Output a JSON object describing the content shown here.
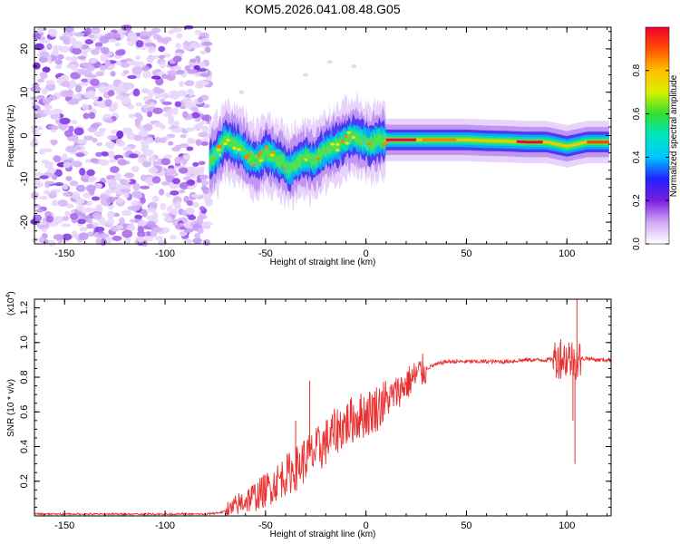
{
  "title": "KOM5.2026.041.08.48.G05",
  "chart_data": [
    {
      "type": "heatmap",
      "xlabel": "Height of straight line (km)",
      "ylabel": "Frequency (Hz)",
      "xlim": [
        -165,
        122
      ],
      "ylim": [
        -25,
        25
      ],
      "xticks": [
        -150,
        -100,
        -50,
        0,
        50,
        100
      ],
      "yticks": [
        -20,
        -10,
        0,
        10,
        20
      ],
      "noise_region_x": [
        -165,
        -78
      ],
      "signal_track": {
        "x": [
          -78,
          -74,
          -70,
          -66,
          -62,
          -58,
          -54,
          -50,
          -46,
          -42,
          -38,
          -34,
          -30,
          -26,
          -22,
          -18,
          -14,
          -10,
          -6,
          -2,
          2,
          6,
          10,
          20,
          30,
          40,
          50,
          60,
          70,
          80,
          90,
          95,
          100,
          105,
          110,
          115,
          120
        ],
        "y": [
          -6,
          -4,
          -1,
          -2,
          -3,
          -5,
          -6,
          -4,
          -5,
          -6,
          -8,
          -6,
          -5,
          -6,
          -4,
          -3,
          -2,
          -1,
          0,
          -1,
          -2,
          -1,
          -1,
          -1,
          -1,
          -1,
          -1,
          -1.2,
          -1.3,
          -1.5,
          -1.5,
          -2,
          -2.5,
          -2,
          -1.5,
          -1.5,
          -1.5
        ]
      },
      "colorbar": {
        "label": "Normalized spectral amplitude",
        "range": [
          0,
          1
        ],
        "ticks": [
          "0.0",
          "0.2",
          "0.4",
          "0.6",
          "0.8"
        ],
        "colors": [
          "#ffffff",
          "#cfa8f5",
          "#7a1ee0",
          "#2020ff",
          "#00c8ff",
          "#00e5c0",
          "#30e030",
          "#d8f000",
          "#ffc000",
          "#ff5000",
          "#f00030"
        ]
      }
    },
    {
      "type": "line",
      "xlabel": "Height of straight line (km)",
      "ylabel": "SNR (10 * v/v)",
      "scale_label": "(x10",
      "scale_exp": "4",
      "scale_close": ")",
      "xlim": [
        -165,
        122
      ],
      "ylim": [
        0,
        1.25
      ],
      "xticks": [
        -150,
        -100,
        -50,
        0,
        50,
        100
      ],
      "yticks": [
        "0.2",
        "0.4",
        "0.6",
        "0.8",
        "1.0",
        "1.2"
      ],
      "color": "#e83030",
      "series": [
        {
          "name": "SNR",
          "x": [
            -165,
            -100,
            -80,
            -72,
            -66,
            -62,
            -58,
            -54,
            -50,
            -46,
            -42,
            -38,
            -34,
            -30,
            -26,
            -22,
            -18,
            -14,
            -10,
            -6,
            -2,
            2,
            6,
            10,
            14,
            18,
            22,
            26,
            30,
            34,
            40,
            50,
            60,
            70,
            80,
            90,
            95,
            100,
            105,
            110,
            115,
            122
          ],
          "y": [
            0.01,
            0.01,
            0.01,
            0.02,
            0.04,
            0.08,
            0.1,
            0.12,
            0.15,
            0.18,
            0.22,
            0.25,
            0.28,
            0.33,
            0.36,
            0.4,
            0.45,
            0.5,
            0.53,
            0.56,
            0.58,
            0.6,
            0.63,
            0.66,
            0.7,
            0.74,
            0.78,
            0.82,
            0.85,
            0.87,
            0.89,
            0.89,
            0.89,
            0.89,
            0.9,
            0.9,
            0.91,
            0.91,
            0.9,
            0.91,
            0.9,
            0.9
          ]
        }
      ],
      "spikes": [
        {
          "x": -28,
          "y": 0.78
        },
        {
          "x": -35,
          "y": 0.55
        },
        {
          "x": 8,
          "y": 0.72
        },
        {
          "x": 97,
          "y": 1.02
        },
        {
          "x": 101,
          "y": 1.0
        },
        {
          "x": 104,
          "y": 0.3
        },
        {
          "x": 105,
          "y": 1.25
        },
        {
          "x": 103,
          "y": 0.55
        }
      ]
    }
  ]
}
